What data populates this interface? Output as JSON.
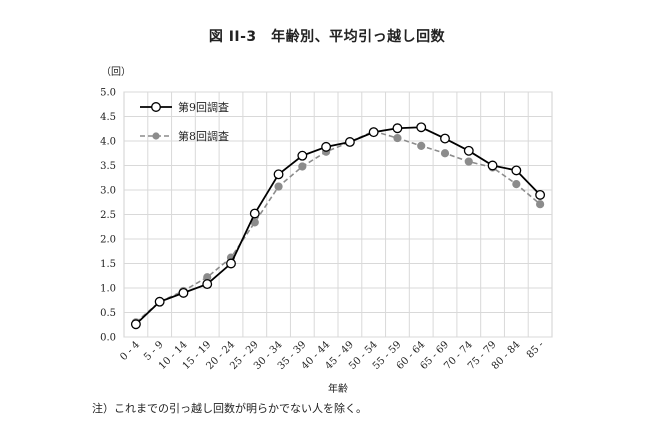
{
  "title": "図 II-3　年齢別、平均引っ越し回数",
  "note": "注）これまでの引っ越し回数が明らかでない人を除く。",
  "chart_data": {
    "type": "line",
    "title": "図 II-3　年齢別、平均引っ越し回数",
    "xlabel": "年齢",
    "ylabel": "（回）",
    "ylim": [
      0,
      5
    ],
    "yticks": [
      "0.0",
      "0.5",
      "1.0",
      "1.5",
      "2.0",
      "2.5",
      "3.0",
      "3.5",
      "4.0",
      "4.5",
      "5.0"
    ],
    "grid": true,
    "legend_position": "top-left",
    "categories": [
      "0 - 4",
      "5 - 9",
      "10 - 14",
      "15 - 19",
      "20 - 24",
      "25 - 29",
      "30 - 34",
      "35 - 39",
      "40 - 44",
      "45 - 49",
      "50 - 54",
      "55 - 59",
      "60 - 64",
      "65 - 69",
      "70 - 74",
      "75 - 79",
      "80 - 84",
      "85 -"
    ],
    "series": [
      {
        "name": "第9回調査",
        "color": "#000000",
        "style": "solid",
        "marker": "open-circle",
        "values": [
          0.26,
          0.72,
          0.9,
          1.08,
          1.5,
          2.52,
          3.32,
          3.7,
          3.88,
          3.98,
          4.18,
          4.26,
          4.28,
          4.05,
          3.8,
          3.5,
          3.4,
          2.9
        ]
      },
      {
        "name": "第8回調査",
        "color": "#8c8c8c",
        "style": "dashed",
        "marker": "filled-circle",
        "values": [
          0.3,
          0.72,
          0.94,
          1.22,
          1.62,
          2.34,
          3.07,
          3.48,
          3.78,
          3.98,
          4.2,
          4.06,
          3.9,
          3.75,
          3.58,
          3.46,
          3.12,
          2.71
        ]
      }
    ]
  }
}
